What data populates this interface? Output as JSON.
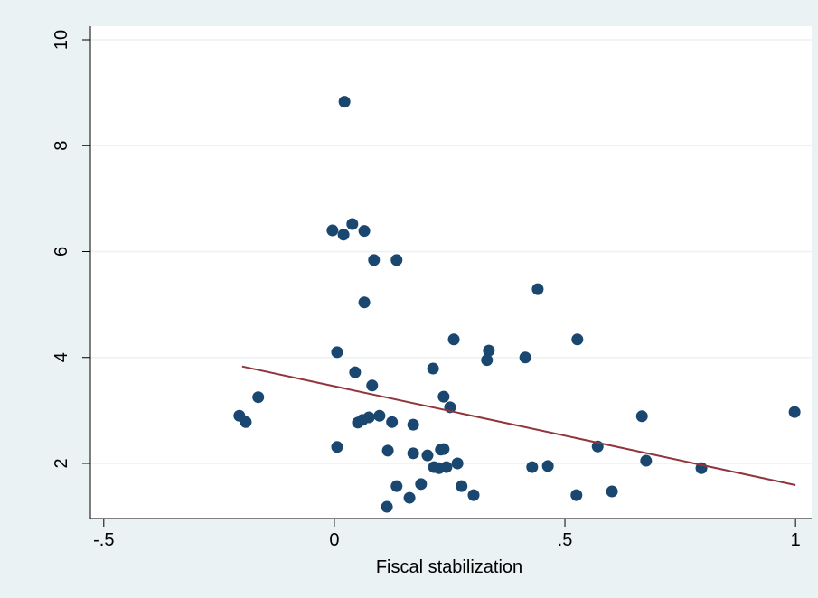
{
  "chart_data": {
    "type": "scatter",
    "xlabel": "Fiscal stabilization",
    "xlim": [
      -0.529,
      1.035
    ],
    "ylim": [
      0.959,
      10.256
    ],
    "xticks": [
      {
        "value": -0.5,
        "label": "-.5"
      },
      0,
      {
        "value": 0.5,
        "label": ".5"
      },
      1
    ],
    "yticks": [
      2,
      4,
      6,
      8,
      10
    ],
    "grid": true,
    "series": [
      {
        "type": "scatter",
        "color": "#1a476f",
        "x": [
          -0.206,
          -0.192,
          -0.165,
          0.022,
          -0.004,
          0.02,
          0.039,
          0.065,
          0.086,
          0.135,
          0.065,
          0.006,
          0.045,
          0.082,
          0.006,
          0.051,
          0.061,
          0.075,
          0.098,
          0.125,
          0.171,
          0.116,
          0.171,
          0.202,
          0.135,
          0.114,
          0.163,
          0.188,
          0.216,
          0.227,
          0.243,
          0.231,
          0.237,
          0.267,
          0.276,
          0.302,
          0.214,
          0.237,
          0.251,
          0.259,
          0.335,
          0.331,
          0.414,
          0.441,
          0.527,
          0.429,
          0.463,
          0.525,
          0.571,
          0.602,
          0.667,
          0.676,
          0.796,
          0.998
        ],
        "values": [
          2.9,
          2.78,
          3.25,
          8.83,
          6.4,
          6.32,
          6.52,
          6.39,
          5.84,
          5.84,
          5.04,
          4.1,
          3.72,
          3.47,
          2.31,
          2.77,
          2.82,
          2.87,
          2.9,
          2.78,
          2.73,
          2.24,
          2.19,
          2.15,
          1.57,
          1.18,
          1.35,
          1.61,
          1.93,
          1.91,
          1.93,
          2.26,
          2.27,
          2.0,
          1.57,
          1.4,
          3.79,
          3.26,
          3.06,
          4.34,
          4.13,
          3.95,
          4.0,
          5.29,
          4.34,
          1.93,
          1.95,
          1.4,
          2.32,
          1.47,
          2.89,
          2.05,
          1.91,
          2.97
        ]
      },
      {
        "type": "line",
        "color": "#90353b",
        "x": [
          -0.2,
          1
        ],
        "values": [
          3.83,
          1.59
        ]
      }
    ]
  }
}
